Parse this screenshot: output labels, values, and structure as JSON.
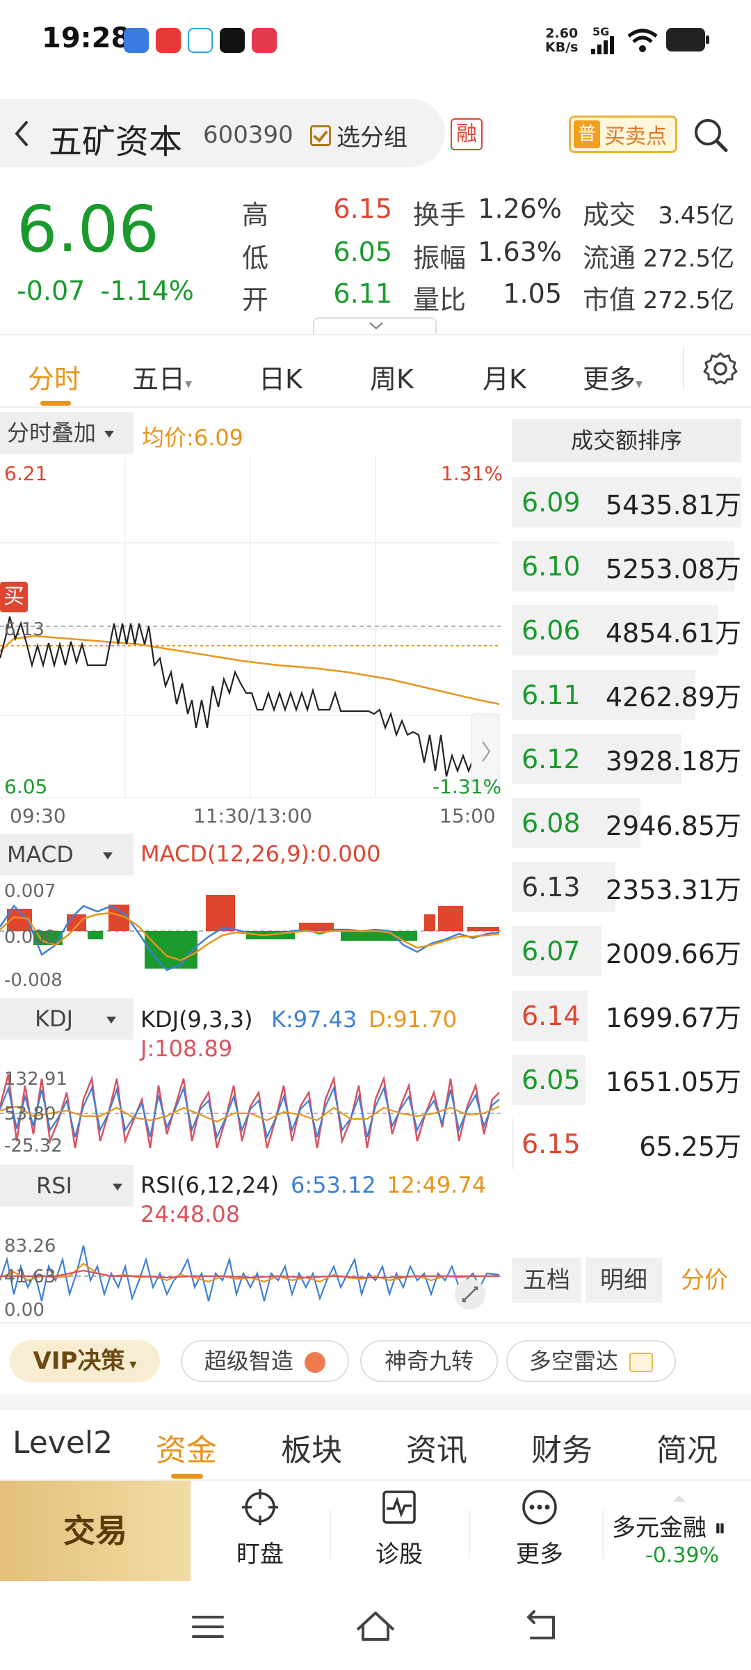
{
  "status_bar": {
    "time": "19:28",
    "net_speed_value": "2.60",
    "net_speed_unit": "KB/s",
    "network": "5G"
  },
  "header": {
    "stock_name": "五矿资本",
    "stock_code": "600390",
    "group_button": "选分组",
    "rong_badge": "融",
    "pu_badge": "普",
    "buy_sell_label": "买卖点"
  },
  "quote": {
    "price": "6.06",
    "change": "-0.07",
    "change_pct": "-1.14%",
    "stats": [
      {
        "label": "高",
        "value": "6.15",
        "color": "red"
      },
      {
        "label": "低",
        "value": "6.05",
        "color": "green"
      },
      {
        "label": "开",
        "value": "6.11",
        "color": "green"
      }
    ],
    "mid_stats": [
      {
        "label": "换手",
        "value": "1.26%"
      },
      {
        "label": "振幅",
        "value": "1.63%"
      },
      {
        "label": "量比",
        "value": "1.05"
      }
    ],
    "right_stats": [
      {
        "label": "成交",
        "value": "3.45亿"
      },
      {
        "label": "流通",
        "value": "272.5亿"
      },
      {
        "label": "市值",
        "value": "272.5亿"
      }
    ]
  },
  "tabs": [
    "分时",
    "五日",
    "日K",
    "周K",
    "月K",
    "更多"
  ],
  "intraday": {
    "overlay_label": "分时叠加",
    "avg_price_label": "均价:6.09",
    "top_price": "6.21",
    "top_pct": "1.31%",
    "bottom_price": "6.05",
    "bottom_pct": "-1.31%",
    "ref_price": "6.13",
    "buy_marker": "买",
    "x_ticks": [
      "09:30",
      "11:30/13:00",
      "15:00"
    ]
  },
  "macd": {
    "label": "MACD",
    "title": "MACD(12,26,9):0.000",
    "y_ticks": [
      "0.007",
      "0.000",
      "-0.008"
    ]
  },
  "kdj": {
    "label": "KDJ",
    "title": "KDJ(9,3,3)",
    "k": "K:97.43",
    "d": "D:91.70",
    "j": "J:108.89",
    "y_ticks": [
      "132.91",
      "53.80",
      "-25.32"
    ]
  },
  "rsi": {
    "label": "RSI",
    "title": "RSI(6,12,24)",
    "r6": "6:53.12",
    "r12": "12:49.74",
    "r24": "24:48.08",
    "y_ticks": [
      "83.26",
      "41.63",
      "0.00"
    ]
  },
  "ranking": {
    "title": "成交额排序",
    "rows": [
      {
        "price": "6.09",
        "amount": "5435.81万",
        "color": "green",
        "share": 1.0
      },
      {
        "price": "6.10",
        "amount": "5253.08万",
        "color": "green",
        "share": 0.97
      },
      {
        "price": "6.06",
        "amount": "4854.61万",
        "color": "green",
        "share": 0.9
      },
      {
        "price": "6.11",
        "amount": "4262.89万",
        "color": "green",
        "share": 0.8
      },
      {
        "price": "6.12",
        "amount": "3928.18万",
        "color": "green",
        "share": 0.74
      },
      {
        "price": "6.08",
        "amount": "2946.85万",
        "color": "green",
        "share": 0.56
      },
      {
        "price": "6.13",
        "amount": "2353.31万",
        "color": "gray",
        "share": 0.45
      },
      {
        "price": "6.07",
        "amount": "2009.66万",
        "color": "green",
        "share": 0.39
      },
      {
        "price": "6.14",
        "amount": "1699.67万",
        "color": "red",
        "share": 0.33
      },
      {
        "price": "6.05",
        "amount": "1651.05万",
        "color": "green",
        "share": 0.32
      },
      {
        "price": "6.15",
        "amount": "65.25万",
        "color": "red",
        "share": 0.01
      }
    ]
  },
  "segment": [
    "五档",
    "明细",
    "分价"
  ],
  "chips": {
    "vip": "VIP决策",
    "items": [
      "超级智造",
      "神奇九转",
      "多空雷达"
    ]
  },
  "bottom_tabs": [
    "Level2",
    "资金",
    "板块",
    "资讯",
    "财务",
    "简况"
  ],
  "actions": {
    "trade": "交易",
    "watch": "盯盘",
    "diagnose": "诊股",
    "more": "更多"
  },
  "index": {
    "name": "多元金融",
    "change": "-0.39%"
  },
  "colors": {
    "up": "#e0452f",
    "down": "#1a9a2c",
    "accent": "#e8941b"
  }
}
